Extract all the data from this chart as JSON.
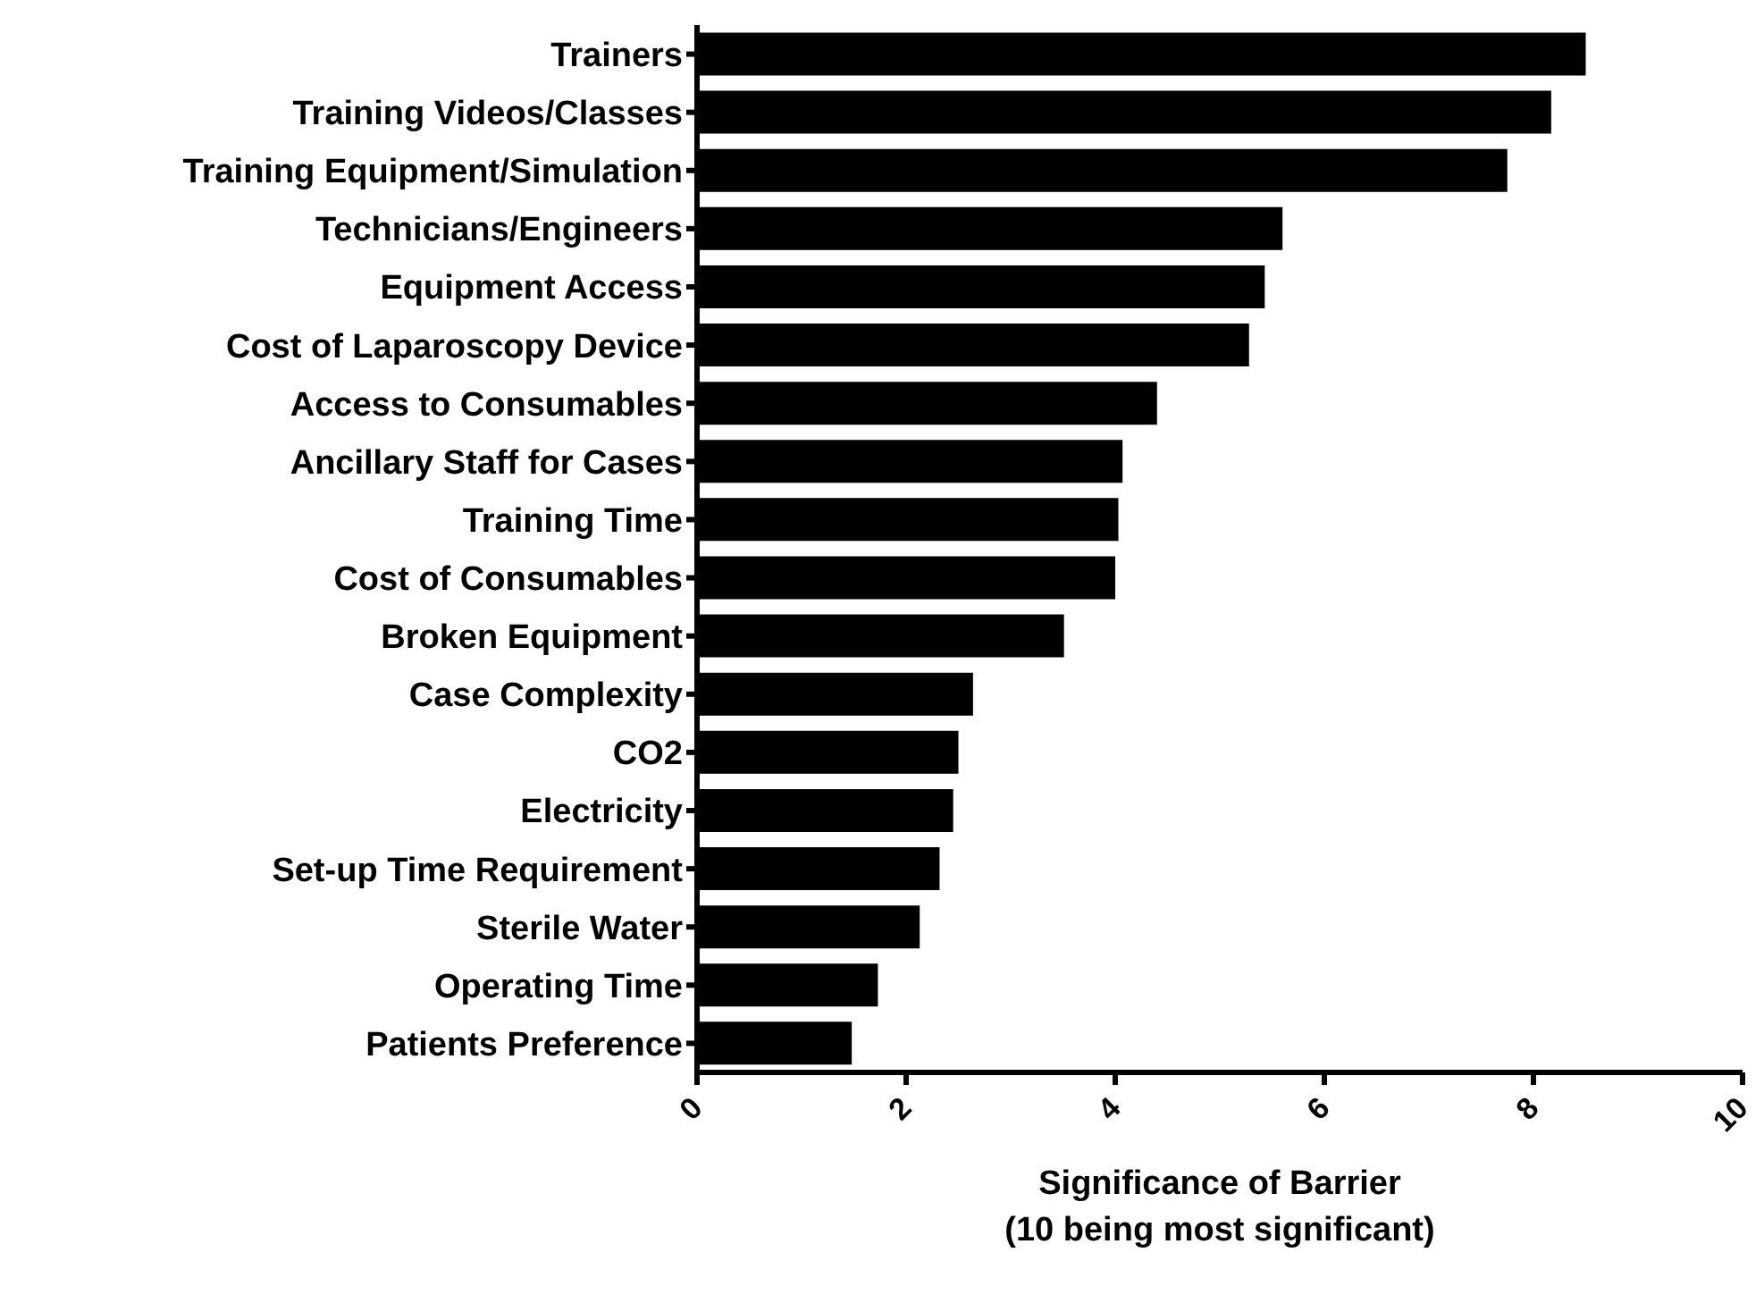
{
  "chart_data": {
    "type": "bar",
    "orientation": "horizontal",
    "xlabel": "Significance of Barrier\n(10 being most significant)",
    "categories": [
      "Trainers",
      "Training Videos/Classes",
      "Training Equipment/Simulation",
      "Technicians/Engineers",
      "Equipment Access",
      "Cost of Laparoscopy Device",
      "Access to Consumables",
      "Ancillary Staff for Cases",
      "Training Time",
      "Cost of Consumables",
      "Broken Equipment",
      "Case Complexity",
      "CO2",
      "Electricity",
      "Set-up Time Requirement",
      "Sterile Water",
      "Operating Time",
      "Patients Preference"
    ],
    "values": [
      8.5,
      8.17,
      7.75,
      5.6,
      5.43,
      5.28,
      4.4,
      4.07,
      4.03,
      4.0,
      3.51,
      2.64,
      2.5,
      2.45,
      2.32,
      2.13,
      1.73,
      1.48
    ],
    "color": "#000000",
    "xlim": [
      0,
      10
    ],
    "xticks": [
      0,
      2,
      4,
      6,
      8,
      10
    ],
    "grid": false,
    "legend": false
  }
}
